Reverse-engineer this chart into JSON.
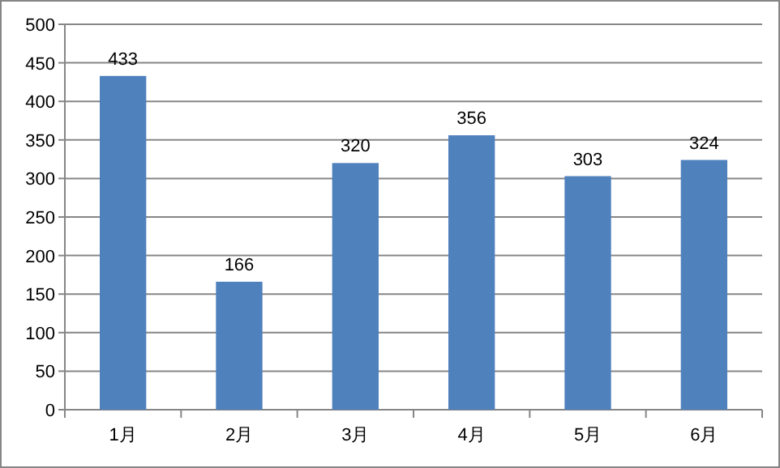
{
  "chart_data": {
    "type": "bar",
    "categories": [
      "1月",
      "2月",
      "3月",
      "4月",
      "5月",
      "6月"
    ],
    "values": [
      433,
      166,
      320,
      356,
      303,
      324
    ],
    "color": "#4f81bd",
    "ylim": [
      0,
      500
    ],
    "yticks": [
      0,
      50,
      100,
      150,
      200,
      250,
      300,
      350,
      400,
      450,
      500
    ],
    "grid": "y",
    "data_labels": true
  }
}
